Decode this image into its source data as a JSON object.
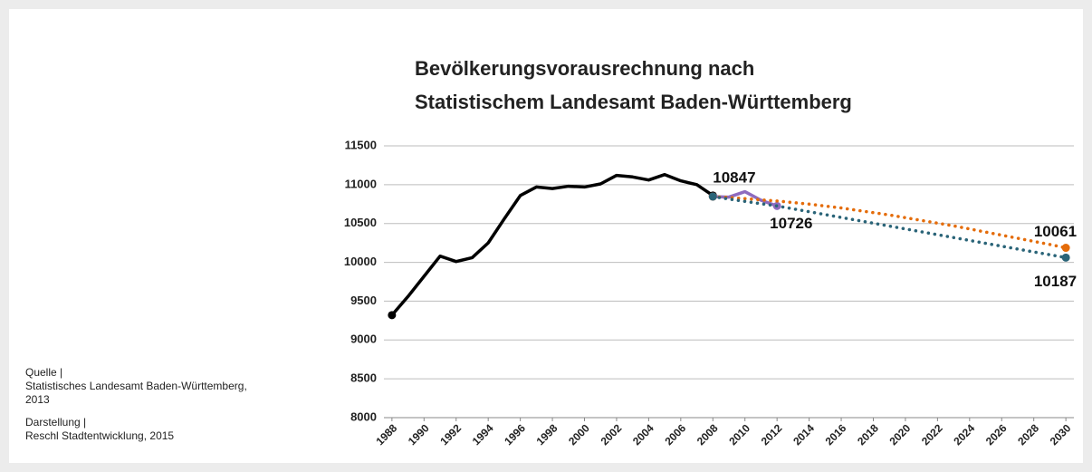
{
  "chart_data": {
    "type": "line",
    "title": [
      "Bevölkerungsvorausrechnung nach",
      "Statistischem Landesamt Baden-Württemberg"
    ],
    "annotations": [
      "Quelle |",
      "Statistisches Landesamt Baden-Württemberg, 2013",
      "Darstellung |",
      "Reschl Stadtentwicklung, 2015"
    ],
    "x": [
      1988,
      1989,
      1990,
      1991,
      1992,
      1993,
      1994,
      1995,
      1996,
      1997,
      1998,
      1999,
      2000,
      2001,
      2002,
      2003,
      2004,
      2005,
      2006,
      2007,
      2008,
      2009,
      2010,
      2011,
      2012,
      2013,
      2014,
      2015,
      2016,
      2017,
      2018,
      2019,
      2020,
      2021,
      2022,
      2023,
      2024,
      2025,
      2026,
      2027,
      2028,
      2029,
      2030
    ],
    "series": [
      {
        "color": "#000000",
        "style": "solid",
        "values": [
          9320,
          9560,
          9820,
          10080,
          10010,
          10060,
          10250,
          10560,
          10860,
          10970,
          10950,
          10980,
          10970,
          11010,
          11120,
          11100,
          11060,
          11130,
          11050,
          11000,
          10860,
          null,
          null,
          null,
          null,
          null,
          null,
          null,
          null,
          null,
          null,
          null,
          null,
          null,
          null,
          null,
          null,
          null,
          null,
          null,
          null,
          null,
          null
        ]
      },
      {
        "color": "#8e6bbf",
        "style": "solid",
        "values": [
          null,
          null,
          null,
          null,
          null,
          null,
          null,
          null,
          null,
          null,
          null,
          null,
          null,
          null,
          null,
          null,
          null,
          null,
          null,
          null,
          10847,
          10840,
          10910,
          10800,
          10726,
          null,
          null,
          null,
          null,
          null,
          null,
          null,
          null,
          null,
          null,
          null,
          null,
          null,
          null,
          null,
          null,
          null,
          null
        ]
      },
      {
        "color": "#e46c0a",
        "style": "dotted",
        "values": [
          null,
          null,
          null,
          null,
          null,
          null,
          null,
          null,
          null,
          null,
          null,
          null,
          null,
          null,
          null,
          null,
          null,
          null,
          null,
          null,
          10847,
          10835,
          10820,
          10805,
          10790,
          10770,
          10750,
          10725,
          10700,
          10670,
          10640,
          10610,
          10575,
          10540,
          10505,
          10470,
          10430,
          10390,
          10350,
          10310,
          10270,
          10230,
          10187
        ]
      },
      {
        "color": "#2a6478",
        "style": "dotted",
        "values": [
          null,
          null,
          null,
          null,
          null,
          null,
          null,
          null,
          null,
          null,
          null,
          null,
          null,
          null,
          null,
          null,
          null,
          null,
          null,
          null,
          10847,
          10815,
          10785,
          10755,
          10726,
          10689,
          10652,
          10615,
          10578,
          10541,
          10504,
          10467,
          10430,
          10393,
          10356,
          10319,
          10282,
          10245,
          10208,
          10171,
          10134,
          10098,
          10061
        ]
      }
    ],
    "xlim": [
      1987.5,
      2030.5
    ],
    "xticks": [
      1988,
      1990,
      1992,
      1994,
      1996,
      1998,
      2000,
      2002,
      2004,
      2006,
      2008,
      2010,
      2012,
      2014,
      2016,
      2018,
      2020,
      2022,
      2024,
      2026,
      2028,
      2030
    ],
    "ylim": [
      8000,
      11500
    ],
    "yticks": [
      8000,
      8500,
      9000,
      9500,
      10000,
      10500,
      11000,
      11500
    ],
    "grid": true
  }
}
